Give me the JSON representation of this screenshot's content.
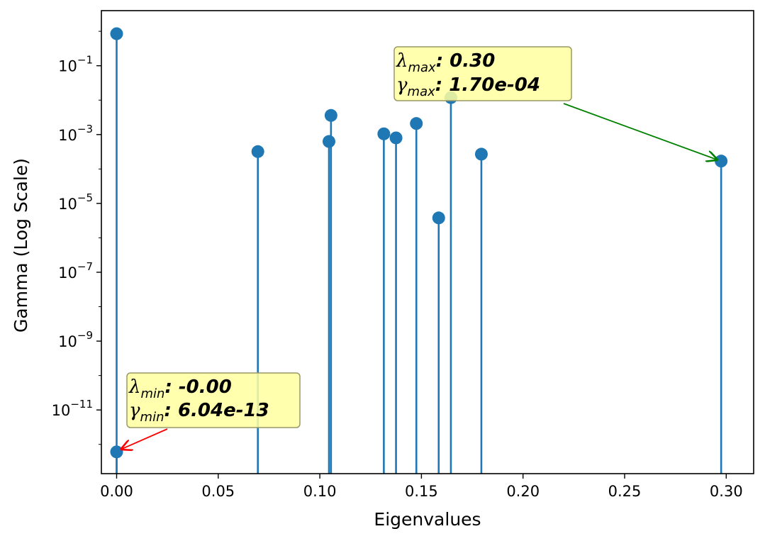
{
  "chart_data": {
    "type": "stem",
    "xlabel": "Eigenvalues",
    "ylabel": "Gamma (Log Scale)",
    "yscale": "log",
    "xlim": [
      -0.0075,
      0.3135
    ],
    "ylim_log10": [
      -12.85,
      0.6
    ],
    "x_ticks": [
      {
        "value": 0.0,
        "label": "0.00"
      },
      {
        "value": 0.05,
        "label": "0.05"
      },
      {
        "value": 0.1,
        "label": "0.10"
      },
      {
        "value": 0.15,
        "label": "0.15"
      },
      {
        "value": 0.2,
        "label": "0.20"
      },
      {
        "value": 0.25,
        "label": "0.25"
      },
      {
        "value": 0.3,
        "label": "0.30"
      }
    ],
    "y_ticks": [
      {
        "exp": -1,
        "base": "10",
        "sup": "−1"
      },
      {
        "exp": -3,
        "base": "10",
        "sup": "−3"
      },
      {
        "exp": -5,
        "base": "10",
        "sup": "−5"
      },
      {
        "exp": -7,
        "base": "10",
        "sup": "−7"
      },
      {
        "exp": -9,
        "base": "10",
        "sup": "−9"
      },
      {
        "exp": -11,
        "base": "10",
        "sup": "−11"
      }
    ],
    "series": [
      {
        "name": "gamma",
        "color": "#1f77b4",
        "points": [
          {
            "x": 0.0,
            "y": 0.85
          },
          {
            "x": 0.0,
            "y": 6.04e-13
          },
          {
            "x": 0.0695,
            "y": 0.00032
          },
          {
            "x": 0.1045,
            "y": 0.00063
          },
          {
            "x": 0.1055,
            "y": 0.0036
          },
          {
            "x": 0.1315,
            "y": 0.00105
          },
          {
            "x": 0.1375,
            "y": 0.0008
          },
          {
            "x": 0.1475,
            "y": 0.0021
          },
          {
            "x": 0.1585,
            "y": 3.8e-06
          },
          {
            "x": 0.1645,
            "y": 0.0118
          },
          {
            "x": 0.1795,
            "y": 0.00027
          },
          {
            "x": 0.2975,
            "y": 0.00017
          }
        ]
      }
    ],
    "annotations": [
      {
        "name": "min",
        "lambda_symbol": "λ",
        "lambda_sub": "min",
        "lambda_value": ": -0.00",
        "gamma_symbol": "γ",
        "gamma_sub": "min",
        "gamma_value": ": 6.04e-13",
        "target": {
          "x": 0.0,
          "y": 6.04e-13
        },
        "arrow_color": "#ff0000",
        "box_color": "#ffffa0"
      },
      {
        "name": "max",
        "lambda_symbol": "λ",
        "lambda_sub": "max",
        "lambda_value": ": 0.30",
        "gamma_symbol": "γ",
        "gamma_sub": "max",
        "gamma_value": ": 1.70e-04",
        "target": {
          "x": 0.2975,
          "y": 0.00017
        },
        "arrow_color": "#008000",
        "box_color": "#ffffa0"
      }
    ]
  }
}
